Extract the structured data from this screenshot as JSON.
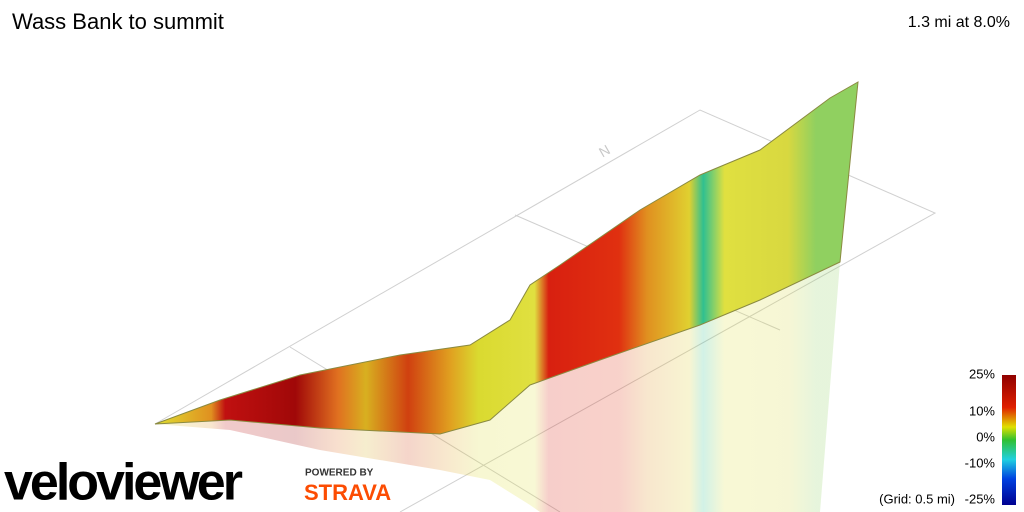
{
  "header": {
    "title": "Wass Bank to summit",
    "stats": "1.3 mi at 8.0%"
  },
  "legend": {
    "labels": [
      "25%",
      "10%",
      "0%",
      "-10%",
      "-25%"
    ],
    "grid_note": "(Grid: 0.5 mi)"
  },
  "compass": "N",
  "branding": {
    "logo": "veloviewer",
    "powered_by": "POWERED BY",
    "partner": "STRAVA"
  }
}
